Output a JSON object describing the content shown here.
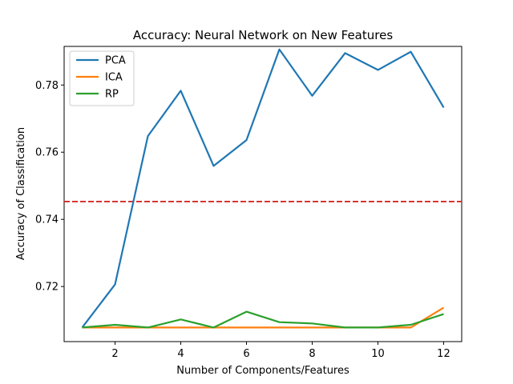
{
  "chart_data": {
    "type": "line",
    "title": "Accuracy: Neural Network on New Features",
    "xlabel": "Number of Components/Features",
    "ylabel": "Accuracy of Classification",
    "x": [
      1,
      2,
      3,
      4,
      5,
      6,
      7,
      8,
      9,
      10,
      11,
      12
    ],
    "xlim": [
      0.45,
      12.55
    ],
    "ylim": [
      0.7036,
      0.7915
    ],
    "xticks": [
      2,
      4,
      6,
      8,
      10,
      12
    ],
    "yticks": [
      0.72,
      0.74,
      0.76,
      0.78
    ],
    "xtick_labels": [
      "2",
      "4",
      "6",
      "8",
      "10",
      "12"
    ],
    "ytick_labels": [
      "0.72",
      "0.74",
      "0.76",
      "0.78"
    ],
    "grid": false,
    "legend_position": "upper-left",
    "series": [
      {
        "name": "PCA",
        "color": "#1f77b4",
        "values": [
          0.7078,
          0.7206,
          0.7648,
          0.7783,
          0.7559,
          0.7636,
          0.7906,
          0.7768,
          0.7895,
          0.7845,
          0.7899,
          0.7733
        ]
      },
      {
        "name": "ICA",
        "color": "#ff7f0e",
        "values": [
          0.7078,
          0.7078,
          0.7078,
          0.7078,
          0.7078,
          0.7078,
          0.7078,
          0.7078,
          0.7078,
          0.7078,
          0.7078,
          0.7137
        ]
      },
      {
        "name": "RP",
        "color": "#2ca02c",
        "values": [
          0.7078,
          0.7086,
          0.7078,
          0.7102,
          0.7078,
          0.7125,
          0.7094,
          0.709,
          0.7078,
          0.7078,
          0.7086,
          0.7118
        ]
      }
    ],
    "reference_line": {
      "y": 0.7453,
      "color": "#d62728",
      "style": "dashed"
    }
  }
}
